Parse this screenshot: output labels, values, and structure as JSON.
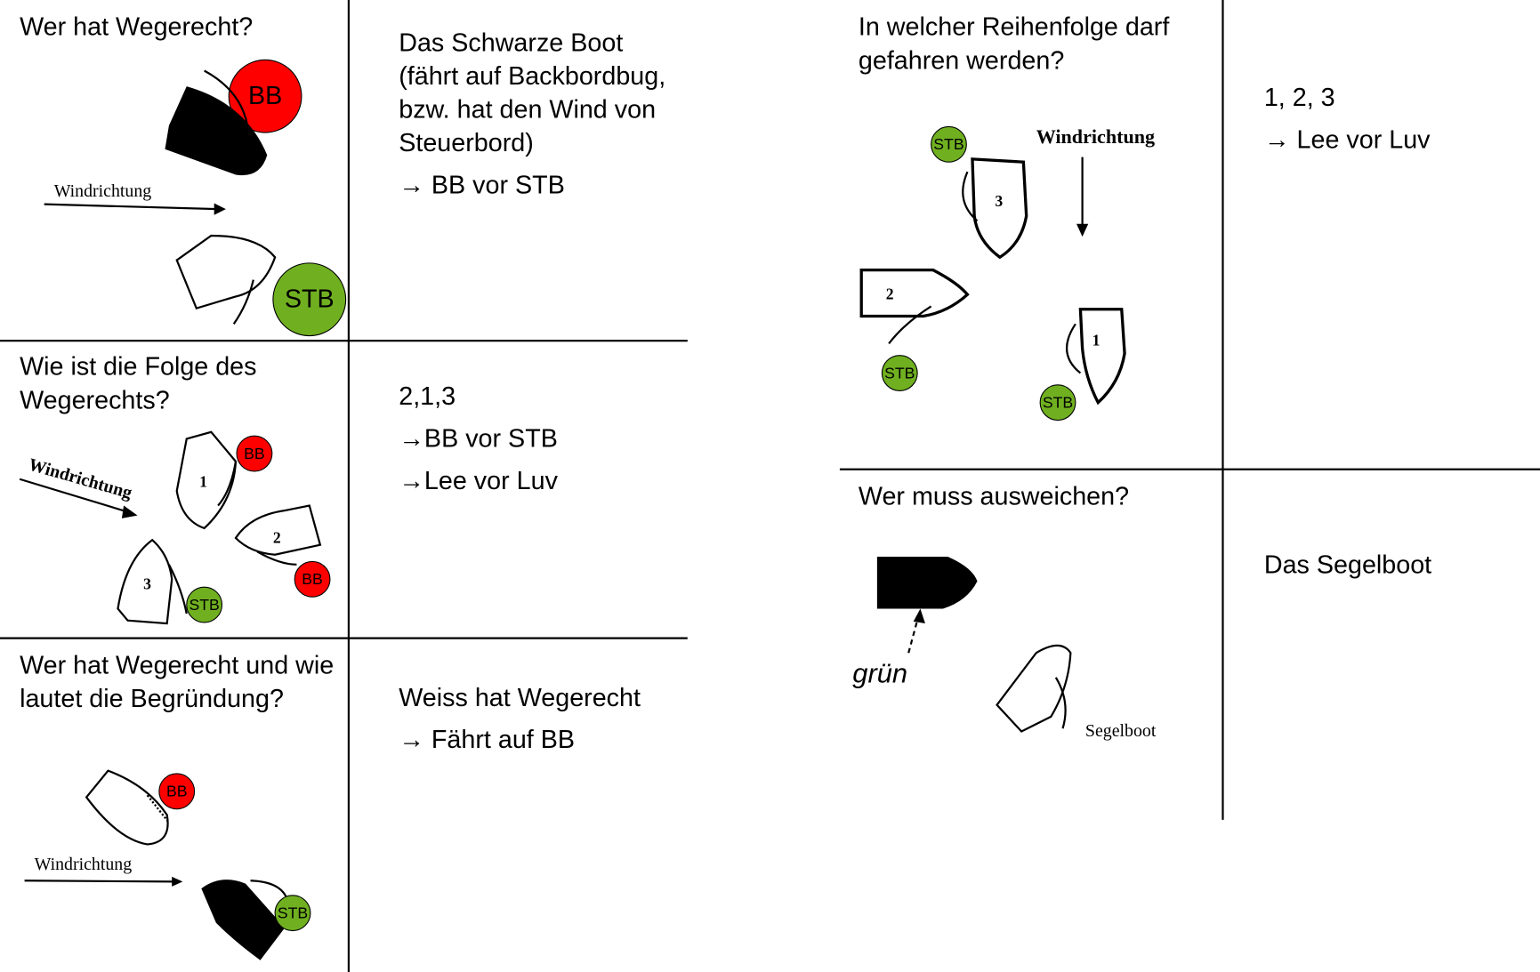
{
  "cells": [
    {
      "question": "Wer hat Wegerecht?",
      "answer": [
        "Das Schwarze Boot (fährt auf Backbordbug, bzw. hat den Wind von Steuerbord)",
        "→ BB vor STB"
      ],
      "diagram": {
        "wind": "Windrichtung",
        "badges": [
          "BB",
          "STB"
        ]
      }
    },
    {
      "question": "Wie ist die Folge des Wegerechts?",
      "answer": [
        "2,1,3",
        "→BB vor STB",
        "→Lee vor Luv"
      ],
      "diagram": {
        "wind": "Windrichtung",
        "boats": [
          "1",
          "2",
          "3"
        ],
        "badges": [
          "BB",
          "BB",
          "STB"
        ]
      }
    },
    {
      "question": "Wer hat Wegerecht und wie lautet die Begründung?",
      "answer": [
        "Weiss hat Wegerecht",
        "→ Fährt auf BB"
      ],
      "diagram": {
        "wind": "Windrichtung",
        "badges": [
          "BB",
          "STB"
        ]
      }
    },
    {
      "question": "In welcher Reihenfolge darf gefahren werden?",
      "answer": [
        "1, 2, 3",
        "→ Lee vor Luv"
      ],
      "diagram": {
        "wind": "Windrichtung",
        "boats": [
          "3",
          "2",
          "1"
        ],
        "badges": [
          "STB",
          "STB",
          "STB"
        ]
      }
    },
    {
      "question": "Wer muss ausweichen?",
      "answer": [
        "Das Segelboot"
      ],
      "diagram": {
        "labels": [
          "grün",
          "Segelboot"
        ]
      }
    }
  ]
}
